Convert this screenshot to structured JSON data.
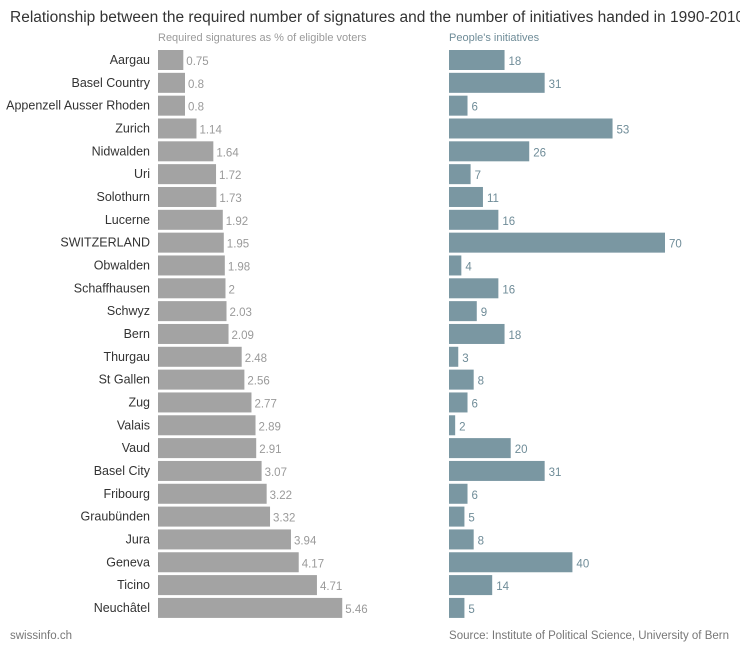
{
  "title": "Relationship between the required number of signatures and the number of initiatives handed in 1990-2010",
  "footer": {
    "credit": "swissinfo.ch",
    "source": "Source: Institute of Political Science, University of Bern"
  },
  "colors": {
    "signatures_bar": "#a3a3a3",
    "signatures_label": "#9a9a9a",
    "initiatives_bar": "#7a97a2",
    "initiatives_label": "#6f8c98",
    "category_label": "#333333"
  },
  "chart_data": [
    {
      "type": "bar",
      "orientation": "horizontal",
      "title": "Required signatures as % of eligible voters",
      "categories": [
        "Aargau",
        "Basel Country",
        "Appenzell Ausser Rhoden",
        "Zurich",
        "Nidwalden",
        "Uri",
        "Solothurn",
        "Lucerne",
        "SWITZERLAND",
        "Obwalden",
        "Schaffhausen",
        "Schwyz",
        "Bern",
        "Thurgau",
        "St Gallen",
        "Zug",
        "Valais",
        "Vaud",
        "Basel City",
        "Fribourg",
        "Graubünden",
        "Jura",
        "Geneva",
        "Ticino",
        "Neuchâtel"
      ],
      "values": [
        0.75,
        0.8,
        0.8,
        1.14,
        1.64,
        1.72,
        1.73,
        1.92,
        1.95,
        1.98,
        2,
        2.03,
        2.09,
        2.48,
        2.56,
        2.77,
        2.89,
        2.91,
        3.07,
        3.22,
        3.32,
        3.94,
        4.17,
        4.71,
        5.46
      ],
      "value_labels": [
        "0.75",
        "0.8",
        "0.8",
        "1.14",
        "1.64",
        "1.72",
        "1.73",
        "1.92",
        "1.95",
        "1.98",
        "2",
        "2.03",
        "2.09",
        "2.48",
        "2.56",
        "2.77",
        "2.89",
        "2.91",
        "3.07",
        "3.22",
        "3.32",
        "3.94",
        "4.17",
        "4.71",
        "5.46"
      ],
      "xlim": [
        0,
        5.46
      ],
      "grid": false,
      "legend": "none"
    },
    {
      "type": "bar",
      "orientation": "horizontal",
      "title": "People's initiatives",
      "categories": [
        "Aargau",
        "Basel Country",
        "Appenzell Ausser Rhoden",
        "Zurich",
        "Nidwalden",
        "Uri",
        "Solothurn",
        "Lucerne",
        "SWITZERLAND",
        "Obwalden",
        "Schaffhausen",
        "Schwyz",
        "Bern",
        "Thurgau",
        "St Gallen",
        "Zug",
        "Valais",
        "Vaud",
        "Basel City",
        "Fribourg",
        "Graubünden",
        "Jura",
        "Geneva",
        "Ticino",
        "Neuchâtel"
      ],
      "values": [
        18,
        31,
        6,
        53,
        26,
        7,
        11,
        16,
        70,
        4,
        16,
        9,
        18,
        3,
        8,
        6,
        2,
        20,
        31,
        6,
        5,
        8,
        40,
        14,
        5
      ],
      "xlim": [
        0,
        70
      ],
      "grid": false,
      "legend": "none"
    }
  ]
}
